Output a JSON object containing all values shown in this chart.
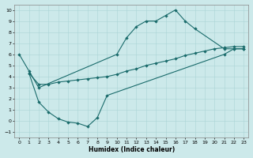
{
  "xlabel": "Humidex (Indice chaleur)",
  "xlim": [
    -0.5,
    23.5
  ],
  "ylim": [
    -1.5,
    10.5
  ],
  "xticks": [
    0,
    1,
    2,
    3,
    4,
    5,
    6,
    7,
    8,
    9,
    10,
    11,
    12,
    13,
    14,
    15,
    16,
    17,
    18,
    19,
    20,
    21,
    22,
    23
  ],
  "yticks": [
    -1,
    0,
    1,
    2,
    3,
    4,
    5,
    6,
    7,
    8,
    9,
    10
  ],
  "bg_color": "#cce9ea",
  "line_color": "#1a6b6b",
  "line1_x": [
    0,
    1,
    2,
    10,
    11,
    12,
    13,
    14,
    15,
    16,
    17,
    18,
    21,
    22,
    23
  ],
  "line1_y": [
    6.0,
    4.5,
    3.0,
    6.0,
    7.5,
    8.5,
    9.0,
    9.0,
    9.5,
    10.0,
    9.0,
    8.3,
    6.5,
    6.5,
    6.5
  ],
  "line2_x": [
    1,
    2,
    3,
    4,
    5,
    6,
    7,
    8,
    9,
    10,
    11,
    12,
    13,
    14,
    15,
    16,
    17,
    18,
    19,
    20,
    21,
    22,
    23
  ],
  "line2_y": [
    4.3,
    3.3,
    3.3,
    3.5,
    3.6,
    3.7,
    3.8,
    3.9,
    4.0,
    4.2,
    4.5,
    4.7,
    5.0,
    5.2,
    5.4,
    5.6,
    5.9,
    6.1,
    6.3,
    6.5,
    6.6,
    6.7,
    6.7
  ],
  "line3_x": [
    1,
    2,
    3,
    4,
    5,
    6,
    7,
    8,
    9,
    21,
    22,
    23
  ],
  "line3_y": [
    4.3,
    1.7,
    0.8,
    0.2,
    -0.1,
    -0.2,
    -0.5,
    0.3,
    2.3,
    6.0,
    6.5,
    6.5
  ]
}
